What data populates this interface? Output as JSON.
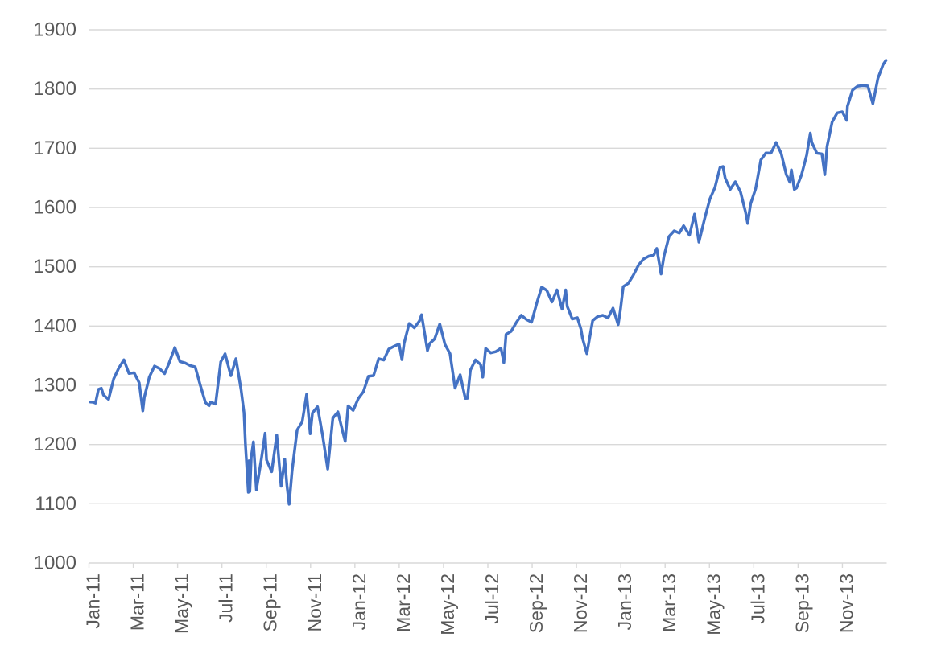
{
  "chart_data": {
    "type": "line",
    "title": "",
    "legend": "none",
    "grid": true,
    "colors": {
      "line": "#4472C4",
      "grid": "#D9D9D9",
      "axis_text": "#595959",
      "background": "#FFFFFF"
    },
    "line_width": 3.5,
    "y_axis": {
      "min": 1000,
      "max": 1900,
      "step": 100,
      "tick_labels": [
        "1000",
        "1100",
        "1200",
        "1300",
        "1400",
        "1500",
        "1600",
        "1700",
        "1800",
        "1900"
      ]
    },
    "x_axis": {
      "start_date": "2011-01-01",
      "end_date": "2014-01-01",
      "tick_interval_months": 2,
      "label_rotation_deg": -90,
      "tick_labels": [
        "Jan-11",
        "Mar-11",
        "May-11",
        "Jul-11",
        "Sep-11",
        "Nov-11",
        "Jan-12",
        "Mar-12",
        "May-12",
        "Jul-12",
        "Sep-12",
        "Nov-12",
        "Jan-13",
        "Mar-13",
        "May-13",
        "Jul-13",
        "Sep-13",
        "Nov-13"
      ]
    },
    "points": [
      [
        "2011-01-03",
        1271.9
      ],
      [
        "2011-01-07",
        1271.5
      ],
      [
        "2011-01-10",
        1269.8
      ],
      [
        "2011-01-14",
        1293.2
      ],
      [
        "2011-01-18",
        1295.0
      ],
      [
        "2011-01-21",
        1283.4
      ],
      [
        "2011-01-28",
        1276.3
      ],
      [
        "2011-02-04",
        1310.9
      ],
      [
        "2011-02-11",
        1329.2
      ],
      [
        "2011-02-18",
        1343.0
      ],
      [
        "2011-02-25",
        1319.9
      ],
      [
        "2011-03-04",
        1321.2
      ],
      [
        "2011-03-11",
        1304.3
      ],
      [
        "2011-03-16",
        1256.9
      ],
      [
        "2011-03-18",
        1279.2
      ],
      [
        "2011-03-25",
        1313.8
      ],
      [
        "2011-04-01",
        1332.4
      ],
      [
        "2011-04-08",
        1328.2
      ],
      [
        "2011-04-15",
        1319.7
      ],
      [
        "2011-04-21",
        1337.4
      ],
      [
        "2011-04-29",
        1363.6
      ],
      [
        "2011-05-06",
        1340.2
      ],
      [
        "2011-05-13",
        1337.8
      ],
      [
        "2011-05-20",
        1333.3
      ],
      [
        "2011-05-27",
        1331.1
      ],
      [
        "2011-06-03",
        1300.2
      ],
      [
        "2011-06-10",
        1271.0
      ],
      [
        "2011-06-15",
        1265.4
      ],
      [
        "2011-06-17",
        1271.5
      ],
      [
        "2011-06-24",
        1268.4
      ],
      [
        "2011-07-01",
        1339.7
      ],
      [
        "2011-07-07",
        1353.2
      ],
      [
        "2011-07-15",
        1316.1
      ],
      [
        "2011-07-22",
        1345.0
      ],
      [
        "2011-07-29",
        1292.3
      ],
      [
        "2011-08-02",
        1254.1
      ],
      [
        "2011-08-04",
        1200.1
      ],
      [
        "2011-08-08",
        1119.5
      ],
      [
        "2011-08-09",
        1172.5
      ],
      [
        "2011-08-10",
        1120.8
      ],
      [
        "2011-08-12",
        1178.8
      ],
      [
        "2011-08-15",
        1204.5
      ],
      [
        "2011-08-19",
        1123.5
      ],
      [
        "2011-08-26",
        1176.8
      ],
      [
        "2011-08-31",
        1218.9
      ],
      [
        "2011-09-02",
        1174.0
      ],
      [
        "2011-09-09",
        1154.2
      ],
      [
        "2011-09-16",
        1216.0
      ],
      [
        "2011-09-22",
        1129.6
      ],
      [
        "2011-09-27",
        1175.4
      ],
      [
        "2011-09-30",
        1131.4
      ],
      [
        "2011-10-03",
        1099.2
      ],
      [
        "2011-10-07",
        1155.5
      ],
      [
        "2011-10-14",
        1224.6
      ],
      [
        "2011-10-21",
        1238.3
      ],
      [
        "2011-10-27",
        1284.6
      ],
      [
        "2011-11-01",
        1218.3
      ],
      [
        "2011-11-04",
        1253.2
      ],
      [
        "2011-11-11",
        1263.9
      ],
      [
        "2011-11-18",
        1215.7
      ],
      [
        "2011-11-25",
        1158.7
      ],
      [
        "2011-12-02",
        1244.3
      ],
      [
        "2011-12-09",
        1255.2
      ],
      [
        "2011-12-16",
        1219.7
      ],
      [
        "2011-12-19",
        1205.4
      ],
      [
        "2011-12-23",
        1265.3
      ],
      [
        "2011-12-30",
        1257.6
      ],
      [
        "2012-01-06",
        1277.8
      ],
      [
        "2012-01-13",
        1289.1
      ],
      [
        "2012-01-20",
        1315.4
      ],
      [
        "2012-01-27",
        1316.3
      ],
      [
        "2012-02-03",
        1344.9
      ],
      [
        "2012-02-10",
        1342.6
      ],
      [
        "2012-02-17",
        1361.2
      ],
      [
        "2012-02-24",
        1365.7
      ],
      [
        "2012-03-02",
        1369.6
      ],
      [
        "2012-03-06",
        1343.4
      ],
      [
        "2012-03-09",
        1370.9
      ],
      [
        "2012-03-16",
        1404.2
      ],
      [
        "2012-03-23",
        1397.1
      ],
      [
        "2012-03-30",
        1408.5
      ],
      [
        "2012-04-02",
        1419.0
      ],
      [
        "2012-04-10",
        1358.6
      ],
      [
        "2012-04-13",
        1370.3
      ],
      [
        "2012-04-20",
        1378.5
      ],
      [
        "2012-04-27",
        1403.4
      ],
      [
        "2012-05-04",
        1369.1
      ],
      [
        "2012-05-11",
        1353.4
      ],
      [
        "2012-05-18",
        1295.2
      ],
      [
        "2012-05-25",
        1317.8
      ],
      [
        "2012-06-01",
        1278.0
      ],
      [
        "2012-06-04",
        1278.2
      ],
      [
        "2012-06-08",
        1325.7
      ],
      [
        "2012-06-15",
        1342.8
      ],
      [
        "2012-06-22",
        1335.0
      ],
      [
        "2012-06-25",
        1313.7
      ],
      [
        "2012-06-29",
        1362.2
      ],
      [
        "2012-07-06",
        1354.7
      ],
      [
        "2012-07-13",
        1356.8
      ],
      [
        "2012-07-20",
        1362.7
      ],
      [
        "2012-07-24",
        1338.3
      ],
      [
        "2012-07-27",
        1386.0
      ],
      [
        "2012-08-03",
        1391.0
      ],
      [
        "2012-08-10",
        1405.9
      ],
      [
        "2012-08-17",
        1418.2
      ],
      [
        "2012-08-24",
        1411.1
      ],
      [
        "2012-08-31",
        1406.6
      ],
      [
        "2012-09-07",
        1437.9
      ],
      [
        "2012-09-14",
        1465.8
      ],
      [
        "2012-09-21",
        1460.1
      ],
      [
        "2012-09-28",
        1440.7
      ],
      [
        "2012-10-05",
        1460.9
      ],
      [
        "2012-10-12",
        1428.6
      ],
      [
        "2012-10-17",
        1460.9
      ],
      [
        "2012-10-19",
        1433.2
      ],
      [
        "2012-10-26",
        1411.9
      ],
      [
        "2012-11-02",
        1414.2
      ],
      [
        "2012-11-07",
        1394.5
      ],
      [
        "2012-11-09",
        1379.9
      ],
      [
        "2012-11-15",
        1353.3
      ],
      [
        "2012-11-23",
        1409.2
      ],
      [
        "2012-11-30",
        1416.2
      ],
      [
        "2012-12-07",
        1418.1
      ],
      [
        "2012-12-14",
        1413.6
      ],
      [
        "2012-12-21",
        1430.2
      ],
      [
        "2012-12-28",
        1402.4
      ],
      [
        "2012-12-31",
        1426.2
      ],
      [
        "2013-01-04",
        1466.5
      ],
      [
        "2013-01-11",
        1472.1
      ],
      [
        "2013-01-18",
        1486.0
      ],
      [
        "2013-01-25",
        1503.0
      ],
      [
        "2013-02-01",
        1513.2
      ],
      [
        "2013-02-08",
        1517.9
      ],
      [
        "2013-02-15",
        1519.8
      ],
      [
        "2013-02-19",
        1530.9
      ],
      [
        "2013-02-25",
        1487.9
      ],
      [
        "2013-03-01",
        1518.2
      ],
      [
        "2013-03-08",
        1551.2
      ],
      [
        "2013-03-15",
        1560.7
      ],
      [
        "2013-03-22",
        1556.9
      ],
      [
        "2013-03-28",
        1569.2
      ],
      [
        "2013-04-05",
        1553.3
      ],
      [
        "2013-04-12",
        1588.9
      ],
      [
        "2013-04-18",
        1541.6
      ],
      [
        "2013-04-26",
        1582.2
      ],
      [
        "2013-05-03",
        1614.4
      ],
      [
        "2013-05-10",
        1633.7
      ],
      [
        "2013-05-17",
        1667.5
      ],
      [
        "2013-05-21",
        1669.2
      ],
      [
        "2013-05-24",
        1649.6
      ],
      [
        "2013-05-31",
        1630.7
      ],
      [
        "2013-06-07",
        1643.4
      ],
      [
        "2013-06-14",
        1626.7
      ],
      [
        "2013-06-21",
        1592.4
      ],
      [
        "2013-06-24",
        1573.1
      ],
      [
        "2013-06-28",
        1606.3
      ],
      [
        "2013-07-05",
        1631.9
      ],
      [
        "2013-07-12",
        1680.2
      ],
      [
        "2013-07-19",
        1692.1
      ],
      [
        "2013-07-26",
        1691.7
      ],
      [
        "2013-08-02",
        1709.7
      ],
      [
        "2013-08-09",
        1691.4
      ],
      [
        "2013-08-16",
        1655.8
      ],
      [
        "2013-08-21",
        1642.8
      ],
      [
        "2013-08-23",
        1663.5
      ],
      [
        "2013-08-27",
        1630.5
      ],
      [
        "2013-08-30",
        1633.0
      ],
      [
        "2013-09-06",
        1655.2
      ],
      [
        "2013-09-13",
        1688.0
      ],
      [
        "2013-09-18",
        1725.5
      ],
      [
        "2013-09-20",
        1709.9
      ],
      [
        "2013-09-27",
        1691.8
      ],
      [
        "2013-10-04",
        1690.5
      ],
      [
        "2013-10-08",
        1655.5
      ],
      [
        "2013-10-11",
        1703.2
      ],
      [
        "2013-10-18",
        1744.5
      ],
      [
        "2013-10-25",
        1759.8
      ],
      [
        "2013-11-01",
        1761.6
      ],
      [
        "2013-11-07",
        1747.2
      ],
      [
        "2013-11-08",
        1770.6
      ],
      [
        "2013-11-15",
        1798.2
      ],
      [
        "2013-11-22",
        1804.8
      ],
      [
        "2013-11-29",
        1805.8
      ],
      [
        "2013-12-06",
        1805.1
      ],
      [
        "2013-12-13",
        1775.3
      ],
      [
        "2013-12-20",
        1818.3
      ],
      [
        "2013-12-27",
        1841.4
      ],
      [
        "2013-12-31",
        1848.4
      ]
    ]
  }
}
